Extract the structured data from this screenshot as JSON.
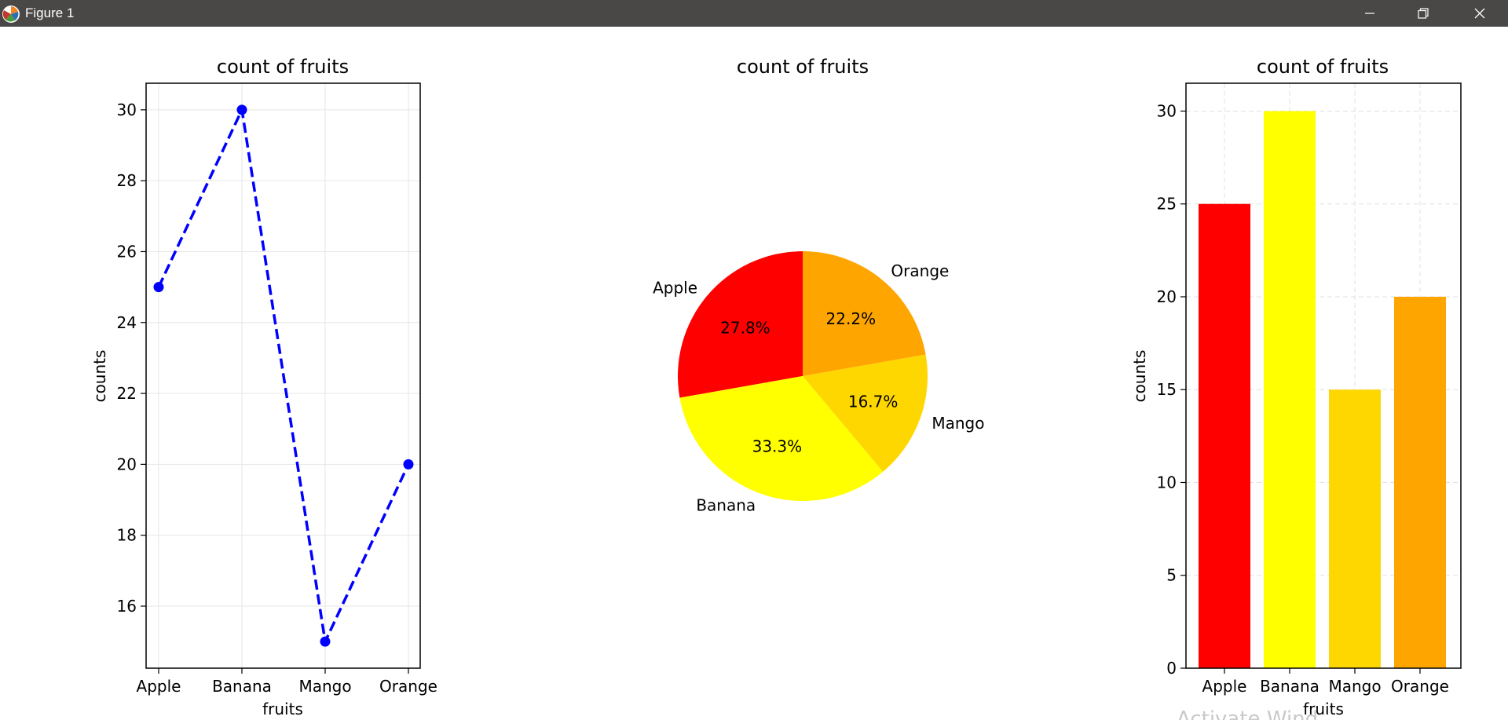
{
  "window": {
    "title": "Figure 1",
    "controls": [
      "minimize",
      "restore",
      "close"
    ]
  },
  "colors": {
    "line": "#0000ff",
    "Apple": "#ff0000",
    "Banana": "#ffff00",
    "Mango": "#ffd700",
    "Orange": "#ffa500",
    "titlebar": "#4a4846"
  },
  "watermark": "Activate Wind",
  "chart_data": [
    {
      "type": "line",
      "title": "count of fruits",
      "xlabel": "fruits",
      "ylabel": "counts",
      "categories": [
        "Apple",
        "Banana",
        "Mango",
        "Orange"
      ],
      "values": [
        25,
        30,
        15,
        20
      ],
      "ylim": [
        14.25,
        30.75
      ],
      "yticks": [
        16,
        18,
        20,
        22,
        24,
        26,
        28,
        30
      ],
      "line_style": "dashed",
      "marker": "circle",
      "grid": true
    },
    {
      "type": "pie",
      "title": "count of fruits",
      "labels": [
        "Apple",
        "Banana",
        "Mango",
        "Orange"
      ],
      "values": [
        25,
        30,
        15,
        20
      ],
      "percentages": [
        "27.8%",
        "33.3%",
        "16.7%",
        "22.2%"
      ],
      "colors": [
        "#ff0000",
        "#ffff00",
        "#ffd700",
        "#ffa500"
      ],
      "startangle": 90
    },
    {
      "type": "bar",
      "title": "count of fruits",
      "xlabel": "fruits",
      "ylabel": "counts",
      "categories": [
        "Apple",
        "Banana",
        "Mango",
        "Orange"
      ],
      "values": [
        25,
        30,
        15,
        20
      ],
      "colors": [
        "#ff0000",
        "#ffff00",
        "#ffd700",
        "#ffa500"
      ],
      "ylim": [
        0,
        31.5
      ],
      "yticks": [
        0,
        5,
        10,
        15,
        20,
        25,
        30
      ],
      "grid": true,
      "grid_style": "dashed"
    }
  ]
}
